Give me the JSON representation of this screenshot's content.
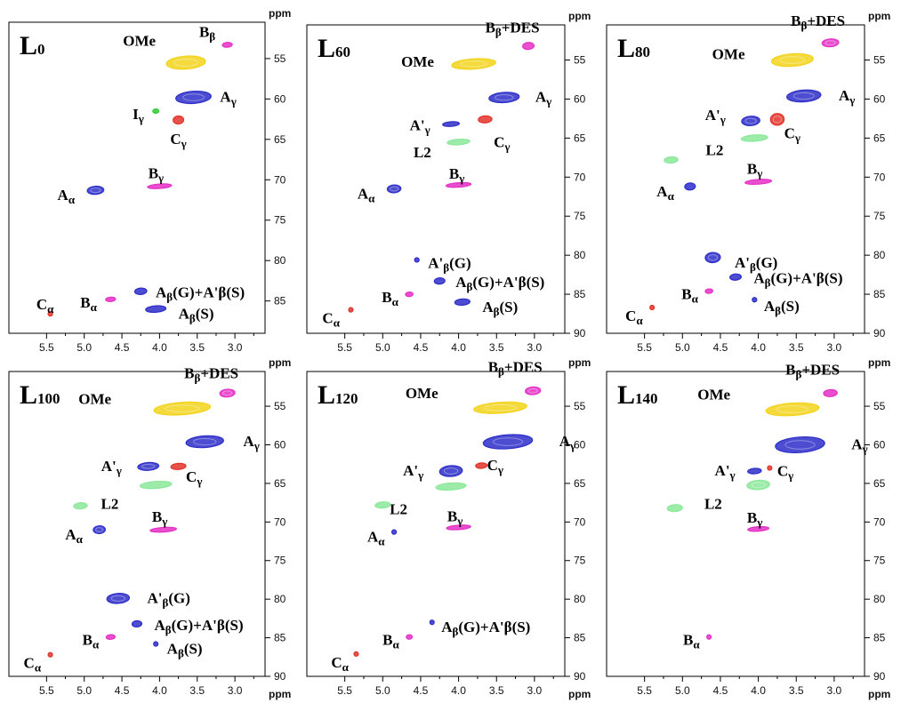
{
  "colors": {
    "yellow": "#f2d31a",
    "blue": "#2d2ec9",
    "red": "#e2342a",
    "green": "#8ce89a",
    "magenta": "#e42fc6",
    "gray": "#c8c8c8",
    "bright_green": "#33cc33"
  },
  "chart_data": [
    {
      "type": "heatmap",
      "title": "L0",
      "title_main": "L",
      "title_sub": "0",
      "x_unit": "ppm",
      "y_unit": "ppm",
      "xlim": [
        6.0,
        2.6
      ],
      "ylim": [
        50.5,
        89
      ],
      "x_ticks": [
        5.5,
        5.0,
        4.5,
        4.0,
        3.5,
        3.0
      ],
      "x_tick_labels": [
        "5.5",
        "5.0",
        "4.5",
        "4.0",
        "3.5",
        "3.0"
      ],
      "y_ticks": [
        55,
        60,
        65,
        70,
        75,
        80,
        85
      ],
      "y_tick_labels": [
        "55",
        "60",
        "65",
        "70",
        "75",
        "80",
        "85"
      ],
      "peaks": [
        {
          "label": "OMe",
          "x": 3.65,
          "y": 55.5,
          "w": 0.52,
          "h": 1.6,
          "color": "yellow"
        },
        {
          "label": "Bβ",
          "x": 3.1,
          "y": 53.3,
          "w": 0.13,
          "h": 0.6,
          "color": "magenta"
        },
        {
          "label": "Aγ",
          "x": 3.55,
          "y": 59.8,
          "w": 0.47,
          "h": 1.5,
          "color": "blue"
        },
        {
          "label": "Iγ",
          "x": 4.05,
          "y": 61.5,
          "w": 0.08,
          "h": 0.5,
          "color": "bright_green"
        },
        {
          "label": "Cγ",
          "x": 3.75,
          "y": 62.6,
          "w": 0.14,
          "h": 1.0,
          "color": "red"
        },
        {
          "label": "Aα",
          "x": 4.85,
          "y": 71.3,
          "w": 0.22,
          "h": 1.0,
          "color": "blue"
        },
        {
          "label": "Bγ",
          "x": 4.0,
          "y": 70.8,
          "w": 0.32,
          "h": 0.5,
          "color": "magenta"
        },
        {
          "label": "Aβ(G)+A'β(S)",
          "x": 4.25,
          "y": 83.8,
          "w": 0.16,
          "h": 0.8,
          "color": "blue"
        },
        {
          "label": "Aβ(S)",
          "x": 4.05,
          "y": 86.0,
          "w": 0.27,
          "h": 0.8,
          "color": "blue"
        },
        {
          "label": "Bα",
          "x": 4.65,
          "y": 84.8,
          "w": 0.13,
          "h": 0.5,
          "color": "magenta"
        },
        {
          "label": "Cα",
          "x": 5.45,
          "y": 86.6,
          "w": 0.06,
          "h": 0.4,
          "color": "red"
        }
      ]
    },
    {
      "type": "heatmap",
      "title": "L60",
      "title_main": "L",
      "title_sub": "60",
      "x_unit": "ppm",
      "y_unit": "ppm",
      "xlim": [
        6.0,
        2.6
      ],
      "ylim": [
        50.5,
        90
      ],
      "x_ticks": [
        5.5,
        5.0,
        4.5,
        4.0,
        3.5,
        3.0
      ],
      "x_tick_labels": [
        "5.5",
        "5.0",
        "4.5",
        "4.0",
        "3.5",
        "3.0"
      ],
      "y_ticks": [
        55,
        60,
        65,
        70,
        75,
        80,
        85,
        90
      ],
      "y_tick_labels": [
        "55",
        "60",
        "65",
        "70",
        "75",
        "80",
        "85",
        "90"
      ],
      "peaks": [
        {
          "label": "OMe",
          "x": 3.8,
          "y": 55.5,
          "w": 0.58,
          "h": 1.3,
          "color": "yellow"
        },
        {
          "label": "Bβ+DES",
          "x": 3.08,
          "y": 53.2,
          "w": 0.15,
          "h": 0.9,
          "color": "magenta"
        },
        {
          "label": "Aγ",
          "x": 3.4,
          "y": 59.8,
          "w": 0.4,
          "h": 1.3,
          "color": "blue"
        },
        {
          "label": "A'γ",
          "x": 4.1,
          "y": 63.2,
          "w": 0.22,
          "h": 0.6,
          "color": "blue"
        },
        {
          "label": "Cγ",
          "x": 3.65,
          "y": 62.6,
          "w": 0.18,
          "h": 0.9,
          "color": "red"
        },
        {
          "label": "L2",
          "x": 4.0,
          "y": 65.5,
          "w": 0.3,
          "h": 0.7,
          "color": "green"
        },
        {
          "label": "Aα",
          "x": 4.85,
          "y": 71.5,
          "w": 0.18,
          "h": 1.0,
          "color": "blue"
        },
        {
          "label": "Bγ",
          "x": 4.0,
          "y": 71.0,
          "w": 0.33,
          "h": 0.5,
          "color": "magenta"
        },
        {
          "label": "A'β(G)",
          "x": 4.55,
          "y": 80.6,
          "w": 0.06,
          "h": 0.4,
          "color": "blue"
        },
        {
          "label": "Aβ(G)+A'β(S)",
          "x": 4.25,
          "y": 83.3,
          "w": 0.14,
          "h": 0.8,
          "color": "blue"
        },
        {
          "label": "Aβ(S)",
          "x": 3.95,
          "y": 86.0,
          "w": 0.2,
          "h": 0.8,
          "color": "blue"
        },
        {
          "label": "Bα",
          "x": 4.65,
          "y": 85.0,
          "w": 0.1,
          "h": 0.5,
          "color": "magenta"
        },
        {
          "label": "Cα",
          "x": 5.42,
          "y": 87.0,
          "w": 0.05,
          "h": 0.3,
          "color": "red"
        }
      ]
    },
    {
      "type": "heatmap",
      "title": "L80",
      "title_main": "L",
      "title_sub": "80",
      "x_unit": "ppm",
      "y_unit": "ppm",
      "xlim": [
        6.0,
        2.6
      ],
      "ylim": [
        50.5,
        90
      ],
      "x_ticks": [
        5.5,
        5.0,
        4.5,
        4.0,
        3.5,
        3.0
      ],
      "x_tick_labels": [
        "5.5",
        "5.0",
        "4.5",
        "4.0",
        "3.5",
        "3.0"
      ],
      "y_ticks": [
        55,
        60,
        65,
        70,
        75,
        80,
        85,
        90
      ],
      "y_tick_labels": [
        "55",
        "60",
        "65",
        "70",
        "75",
        "80",
        "85",
        "90"
      ],
      "peaks": [
        {
          "label": "OMe",
          "x": 3.55,
          "y": 55.0,
          "w": 0.55,
          "h": 1.6,
          "color": "yellow"
        },
        {
          "label": "Bβ+DES",
          "x": 3.05,
          "y": 52.8,
          "w": 0.22,
          "h": 1.0,
          "color": "magenta"
        },
        {
          "label": "Aγ",
          "x": 3.4,
          "y": 59.6,
          "w": 0.45,
          "h": 1.5,
          "color": "blue"
        },
        {
          "label": "A'γ",
          "x": 4.1,
          "y": 62.8,
          "w": 0.24,
          "h": 1.2,
          "color": "blue"
        },
        {
          "label": "Cγ",
          "x": 3.75,
          "y": 62.6,
          "w": 0.18,
          "h": 1.5,
          "color": "red"
        },
        {
          "label": "L2",
          "x": 4.05,
          "y": 65.0,
          "w": 0.35,
          "h": 0.8,
          "color": "green"
        },
        {
          "label": "L2",
          "x": 5.15,
          "y": 67.8,
          "w": 0.18,
          "h": 0.8,
          "color": "green"
        },
        {
          "label": "Aα",
          "x": 4.9,
          "y": 71.2,
          "w": 0.14,
          "h": 0.9,
          "color": "blue"
        },
        {
          "label": "Bγ",
          "x": 4.0,
          "y": 70.6,
          "w": 0.35,
          "h": 0.6,
          "color": "magenta"
        },
        {
          "label": "A'β(G)",
          "x": 4.6,
          "y": 80.3,
          "w": 0.2,
          "h": 1.3,
          "color": "blue"
        },
        {
          "label": "Aβ(G)+A'β(S)",
          "x": 4.3,
          "y": 82.8,
          "w": 0.15,
          "h": 0.8,
          "color": "blue"
        },
        {
          "label": "Aβ(S)",
          "x": 4.05,
          "y": 85.7,
          "w": 0.06,
          "h": 0.4,
          "color": "blue"
        },
        {
          "label": "Bα",
          "x": 4.65,
          "y": 84.6,
          "w": 0.1,
          "h": 0.5,
          "color": "magenta"
        },
        {
          "label": "Cα",
          "x": 5.4,
          "y": 86.7,
          "w": 0.04,
          "h": 0.3,
          "color": "red"
        }
      ]
    },
    {
      "type": "heatmap",
      "title": "L100",
      "title_main": "L",
      "title_sub": "100",
      "x_unit": "ppm",
      "y_unit": "ppm",
      "xlim": [
        6.0,
        2.6
      ],
      "ylim": [
        50.5,
        90
      ],
      "x_ticks": [
        5.5,
        5.0,
        4.5,
        4.0,
        3.5,
        3.0
      ],
      "x_tick_labels": [
        "5.5",
        "5.0",
        "4.5",
        "4.0",
        "3.5",
        "3.0"
      ],
      "y_ticks": [
        55,
        60,
        65,
        70,
        75,
        80,
        85,
        90
      ],
      "y_tick_labels": [
        "55",
        "60",
        "65",
        "70",
        "75",
        "80",
        "85",
        "90"
      ],
      "peaks": [
        {
          "label": "OMe",
          "x": 3.7,
          "y": 55.3,
          "w": 0.75,
          "h": 1.6,
          "color": "yellow"
        },
        {
          "label": "Bβ+DES",
          "x": 3.1,
          "y": 53.3,
          "w": 0.2,
          "h": 1.0,
          "color": "magenta"
        },
        {
          "label": "Aγ",
          "x": 3.4,
          "y": 59.6,
          "w": 0.5,
          "h": 1.5,
          "color": "blue"
        },
        {
          "label": "A'γ",
          "x": 4.15,
          "y": 62.8,
          "w": 0.28,
          "h": 1.0,
          "color": "blue"
        },
        {
          "label": "Cγ",
          "x": 3.75,
          "y": 62.8,
          "w": 0.2,
          "h": 0.8,
          "color": "red"
        },
        {
          "label": "L2",
          "x": 4.05,
          "y": 65.2,
          "w": 0.42,
          "h": 0.9,
          "color": "green"
        },
        {
          "label": "L2",
          "x": 5.05,
          "y": 67.9,
          "w": 0.18,
          "h": 0.8,
          "color": "green"
        },
        {
          "label": "Aα",
          "x": 4.8,
          "y": 71.0,
          "w": 0.16,
          "h": 1.0,
          "color": "blue"
        },
        {
          "label": "Bγ",
          "x": 3.95,
          "y": 71.0,
          "w": 0.35,
          "h": 0.6,
          "color": "magenta"
        },
        {
          "label": "A'β(G)",
          "x": 4.55,
          "y": 79.9,
          "w": 0.3,
          "h": 1.3,
          "color": "blue"
        },
        {
          "label": "Aβ(G)+A'β(S)",
          "x": 4.3,
          "y": 83.2,
          "w": 0.13,
          "h": 0.8,
          "color": "blue"
        },
        {
          "label": "Aβ(S)",
          "x": 4.05,
          "y": 85.8,
          "w": 0.05,
          "h": 0.3,
          "color": "blue"
        },
        {
          "label": "Bα",
          "x": 4.65,
          "y": 84.9,
          "w": 0.12,
          "h": 0.6,
          "color": "magenta"
        },
        {
          "label": "Cα",
          "x": 5.45,
          "y": 87.2,
          "w": 0.05,
          "h": 0.3,
          "color": "red"
        }
      ]
    },
    {
      "type": "heatmap",
      "title": "L120",
      "title_main": "L",
      "title_sub": "120",
      "x_unit": "ppm",
      "y_unit": "ppm",
      "xlim": [
        6.0,
        2.6
      ],
      "ylim": [
        50.5,
        90
      ],
      "x_ticks": [
        5.5,
        5.0,
        4.5,
        4.0,
        3.5,
        3.0
      ],
      "x_tick_labels": [
        "5.5",
        "5.0",
        "4.5",
        "4.0",
        "3.5",
        "3.0"
      ],
      "y_ticks": [
        55,
        60,
        65,
        70,
        75,
        80,
        85,
        90
      ],
      "y_tick_labels": [
        "55",
        "60",
        "65",
        "70",
        "75",
        "80",
        "85",
        "90"
      ],
      "peaks": [
        {
          "label": "OMe",
          "x": 3.45,
          "y": 55.2,
          "w": 0.7,
          "h": 1.4,
          "color": "yellow"
        },
        {
          "label": "Bβ+DES",
          "x": 3.02,
          "y": 53.0,
          "w": 0.2,
          "h": 1.0,
          "color": "magenta"
        },
        {
          "label": "Aγ",
          "x": 3.35,
          "y": 59.6,
          "w": 0.65,
          "h": 1.8,
          "color": "blue"
        },
        {
          "label": "A'γ",
          "x": 4.1,
          "y": 63.4,
          "w": 0.3,
          "h": 1.4,
          "color": "blue"
        },
        {
          "label": "Cγ",
          "x": 3.7,
          "y": 62.7,
          "w": 0.15,
          "h": 0.7,
          "color": "red"
        },
        {
          "label": "L2",
          "x": 4.1,
          "y": 65.4,
          "w": 0.4,
          "h": 0.9,
          "color": "green"
        },
        {
          "label": "L2",
          "x": 5.0,
          "y": 67.8,
          "w": 0.2,
          "h": 0.8,
          "color": "green"
        },
        {
          "label": "Aα",
          "x": 4.85,
          "y": 71.3,
          "w": 0.06,
          "h": 0.5,
          "color": "blue"
        },
        {
          "label": "Bγ",
          "x": 4.0,
          "y": 70.7,
          "w": 0.32,
          "h": 0.5,
          "color": "magenta"
        },
        {
          "label": "Aβ(G)+A'β(S)",
          "x": 4.35,
          "y": 83.0,
          "w": 0.03,
          "h": 0.2,
          "color": "blue"
        },
        {
          "label": "Bα",
          "x": 4.65,
          "y": 84.9,
          "w": 0.08,
          "h": 0.4,
          "color": "magenta"
        },
        {
          "label": "Cα",
          "x": 5.35,
          "y": 87.1,
          "w": 0.03,
          "h": 0.2,
          "color": "red"
        }
      ]
    },
    {
      "type": "heatmap",
      "title": "L140",
      "title_main": "L",
      "title_sub": "140",
      "x_unit": "ppm",
      "y_unit": "ppm",
      "xlim": [
        6.0,
        2.6
      ],
      "ylim": [
        50.5,
        90
      ],
      "x_ticks": [
        5.5,
        5.0,
        4.5,
        4.0,
        3.5,
        3.0
      ],
      "x_tick_labels": [
        "5.5",
        "5.0",
        "4.5",
        "4.0",
        "3.5",
        "3.0"
      ],
      "y_ticks": [
        55,
        60,
        65,
        70,
        75,
        80,
        85,
        90
      ],
      "y_tick_labels": [
        "55",
        "60",
        "65",
        "70",
        "75",
        "80",
        "85",
        "90"
      ],
      "peaks": [
        {
          "label": "OMe",
          "x": 3.55,
          "y": 55.4,
          "w": 0.7,
          "h": 1.6,
          "color": "yellow"
        },
        {
          "label": "Bβ+DES",
          "x": 3.05,
          "y": 53.3,
          "w": 0.18,
          "h": 0.9,
          "color": "magenta"
        },
        {
          "label": "Aγ",
          "x": 3.45,
          "y": 60.0,
          "w": 0.65,
          "h": 2.0,
          "color": "blue"
        },
        {
          "label": "A'γ",
          "x": 4.05,
          "y": 63.4,
          "w": 0.18,
          "h": 0.7,
          "color": "blue"
        },
        {
          "label": "Cγ",
          "x": 3.85,
          "y": 63.0,
          "w": 0.05,
          "h": 0.3,
          "color": "red"
        },
        {
          "label": "L2",
          "x": 4.0,
          "y": 65.2,
          "w": 0.3,
          "h": 1.2,
          "color": "green"
        },
        {
          "label": "L2",
          "x": 5.1,
          "y": 68.2,
          "w": 0.2,
          "h": 0.9,
          "color": "green"
        },
        {
          "label": "Bγ",
          "x": 4.0,
          "y": 70.9,
          "w": 0.28,
          "h": 0.5,
          "color": "magenta"
        },
        {
          "label": "Bα",
          "x": 4.65,
          "y": 84.9,
          "w": 0.03,
          "h": 0.3,
          "color": "magenta"
        }
      ]
    }
  ]
}
